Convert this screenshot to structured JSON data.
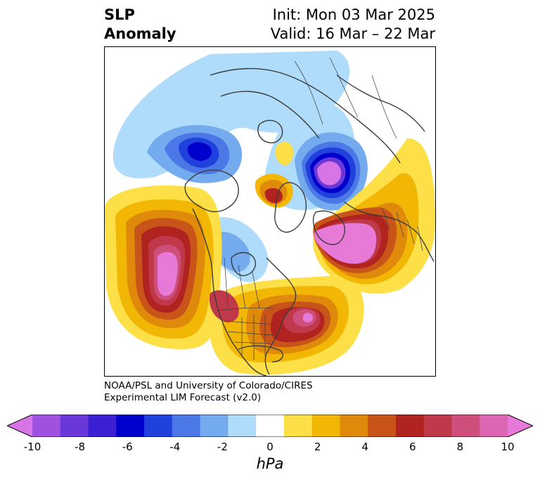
{
  "title": {
    "left_line1": "SLP",
    "left_line2": "Anomaly",
    "right_line1": "Init: Mon 03 Mar 2025",
    "right_line2": "Valid: 16 Mar – 22 Mar"
  },
  "credit": {
    "line1": "NOAA/PSL and University of Colorado/CIRES",
    "line2": "Experimental LIM Forecast (v2.0)"
  },
  "colorbar": {
    "unit": "hPa",
    "ticks": [
      "-10",
      "-8",
      "-6",
      "-4",
      "-2",
      "0",
      "2",
      "4",
      "6",
      "8",
      "10"
    ],
    "colors": [
      "#d775e6",
      "#9f52e0",
      "#6a37d8",
      "#3b1fd3",
      "#0000cc",
      "#2141dd",
      "#4c77e6",
      "#74aaee",
      "#aedcfa",
      "#ffffff",
      "#fde047",
      "#f2b705",
      "#e08a0b",
      "#c9541a",
      "#b0231f",
      "#c0394a",
      "#cf4f7c",
      "#dc66b4",
      "#e67ad6"
    ],
    "extend": "both"
  },
  "map": {
    "projection": "north-polar-stereographic",
    "colors": {
      "land_outline": "#3b3b3b",
      "neg_light": "#aedcfa",
      "neg_mid": "#74aaee",
      "neg_strong": "#4c77e6",
      "neg_deep": "#2141dd",
      "neg_core": "#0000cc",
      "neg_max": "#6a37d8",
      "neg_peak": "#d775e6",
      "pos_light": "#fde047",
      "pos_mid": "#f2b705",
      "pos_strong": "#e08a0b",
      "pos_deep": "#c9541a",
      "pos_red": "#b0231f",
      "pos_rose": "#c0394a",
      "pos_pink": "#cf4f7c",
      "pos_peak": "#e67ad6"
    }
  }
}
